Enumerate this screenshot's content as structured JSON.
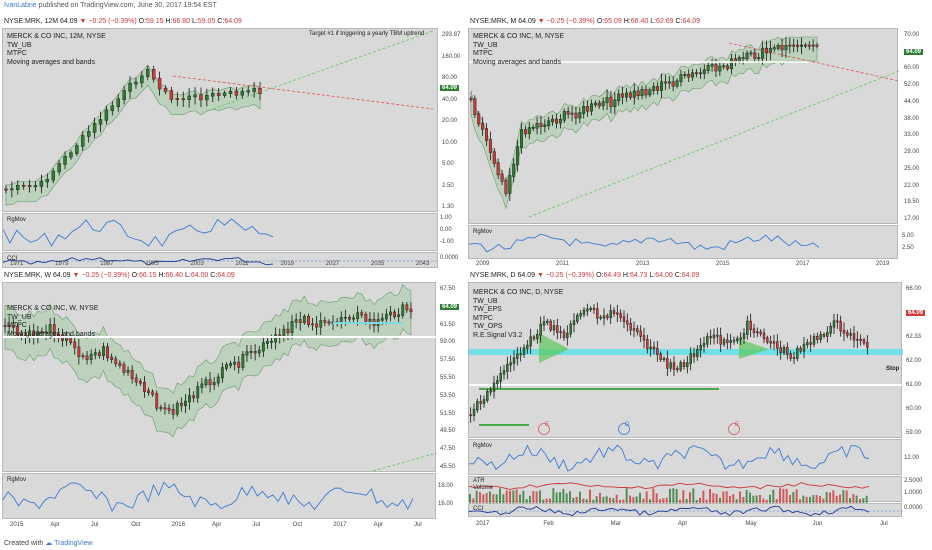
{
  "header": {
    "user": "IvanLabrie",
    "rest": " published on TradingView.com, June 30, 2017 19:54 EST"
  },
  "footer": {
    "prefix": "Created with",
    "brand": "TradingView"
  },
  "colors": {
    "up": "#2e7d32",
    "down": "#d13a3a",
    "bands": "#9bc99b",
    "blue": "#3a7bd5",
    "resist": "#e05050",
    "support": "#5cc85c"
  },
  "panels": [
    {
      "title": {
        "sym": "NYSE:MRK, 12M",
        "val": "64.09",
        "chg": "−0.25 (−0.39%)",
        "o": "59.15",
        "h": "66.80",
        "l": "59.05",
        "c": "64.09"
      },
      "legend": [
        "MERCK & CO INC, 12M, NYSE",
        "TW_UB",
        "MTPC",
        "Moving averages and bands"
      ],
      "note": "Target #1 if triggering a yearly TBM uptrend",
      "price_axis": [
        "293.87",
        "160.00",
        "80.00",
        "40.00",
        "20.00",
        "10.00",
        "5.00",
        "2.50",
        "1.30"
      ],
      "last_price": "64.09",
      "sub1": {
        "name": "RgMov",
        "axis": [
          "1.00",
          "0.00",
          "-1.00"
        ]
      },
      "sub2": {
        "name": "CCI",
        "axis": [
          "0.0000"
        ]
      },
      "time_axis": [
        "1971",
        "1979",
        "1987",
        "1995",
        "2003",
        "2011",
        "2019",
        "2027",
        "2035",
        "2043"
      ]
    },
    {
      "title": {
        "sym": "NYSE:MRK, M",
        "val": "64.09",
        "chg": "−0.25 (−0.39%)",
        "o": "65.09",
        "h": "66.40",
        "l": "62.69",
        "c": "64.09"
      },
      "legend": [
        "MERCK & CO INC, M, NYSE",
        "TW_UB",
        "MTPC",
        "Moving averages and bands"
      ],
      "price_axis": [
        "70.00",
        "64.09",
        "60.00",
        "52.00",
        "44.00",
        "38.00",
        "33.00",
        "29.00",
        "25.00",
        "22.00",
        "19.50",
        "17.00"
      ],
      "last_price": "64.09",
      "sub1": {
        "name": "RgMov",
        "axis": [
          "5.00",
          "2.50"
        ]
      },
      "time_axis": [
        "2009",
        "2011",
        "2013",
        "2015",
        "2017",
        "2019"
      ]
    },
    {
      "title": {
        "sym": "NYSE:MRK, W",
        "val": "64.09",
        "chg": "−0.25 (−0.39%)",
        "o": "66.15",
        "h": "66.40",
        "l": "64.00",
        "c": "64.09"
      },
      "legend": [
        "MERCK & CO INC, W, NYSE",
        "TW_UB",
        "MTPC",
        "Moving averages and bands"
      ],
      "price_axis": [
        "67.50",
        "64.09",
        "61.50",
        "59.00",
        "57.50",
        "55.50",
        "53.50",
        "51.50",
        "49.50",
        "47.50",
        "45.50"
      ],
      "last_price": "64.09",
      "sub1": {
        "name": "RgMov",
        "axis": [
          "18.00",
          "16.00"
        ]
      },
      "time_axis": [
        "2015",
        "Apr",
        "Jul",
        "Oct",
        "2016",
        "Apr",
        "Jul",
        "Oct",
        "2017",
        "Apr",
        "Jul"
      ]
    },
    {
      "title": {
        "sym": "NYSE:MRK, D",
        "val": "64.09",
        "chg": "−0.25 (−0.39%)",
        "o": "64.49",
        "h": "64.73",
        "l": "64.00",
        "c": "64.09"
      },
      "legend": [
        "MERCK & CO INC, D, NYSE",
        "TW_UB",
        "TW_EPS",
        "MTPC",
        "TW_OPS",
        "R.E.Signal V3.2"
      ],
      "price_axis": [
        "66.00",
        "64.09",
        "62.33",
        "62.00",
        "61.00",
        "60.00",
        "59.00"
      ],
      "last_price": "64.09",
      "stop_label": "Stop",
      "stop_price": "62.33",
      "events": [
        "E",
        "D",
        "E"
      ],
      "sub1": {
        "name": "RgMov",
        "axis": [
          "12.00"
        ]
      },
      "sub2": {
        "name": "ATR",
        "name2": "Volume",
        "axis": [
          "2.5000",
          "1.0000"
        ]
      },
      "sub3": {
        "name": "CCI",
        "axis": [
          "0.0000"
        ]
      },
      "time_axis": [
        "2017",
        "Feb",
        "Mar",
        "Apr",
        "May",
        "Jun",
        "Jul"
      ]
    }
  ],
  "chart_data": [
    {
      "type": "candlestick",
      "title": "NYSE:MRK, 12M",
      "scale": "log",
      "ylim": [
        1.3,
        293.87
      ]
    },
    {
      "type": "candlestick",
      "title": "NYSE:MRK, M",
      "ylim": [
        17.0,
        70.0
      ]
    },
    {
      "type": "candlestick",
      "title": "NYSE:MRK, W",
      "ylim": [
        45.5,
        67.5
      ]
    },
    {
      "type": "candlestick",
      "title": "NYSE:MRK, D",
      "ylim": [
        59.0,
        66.0
      ]
    }
  ]
}
